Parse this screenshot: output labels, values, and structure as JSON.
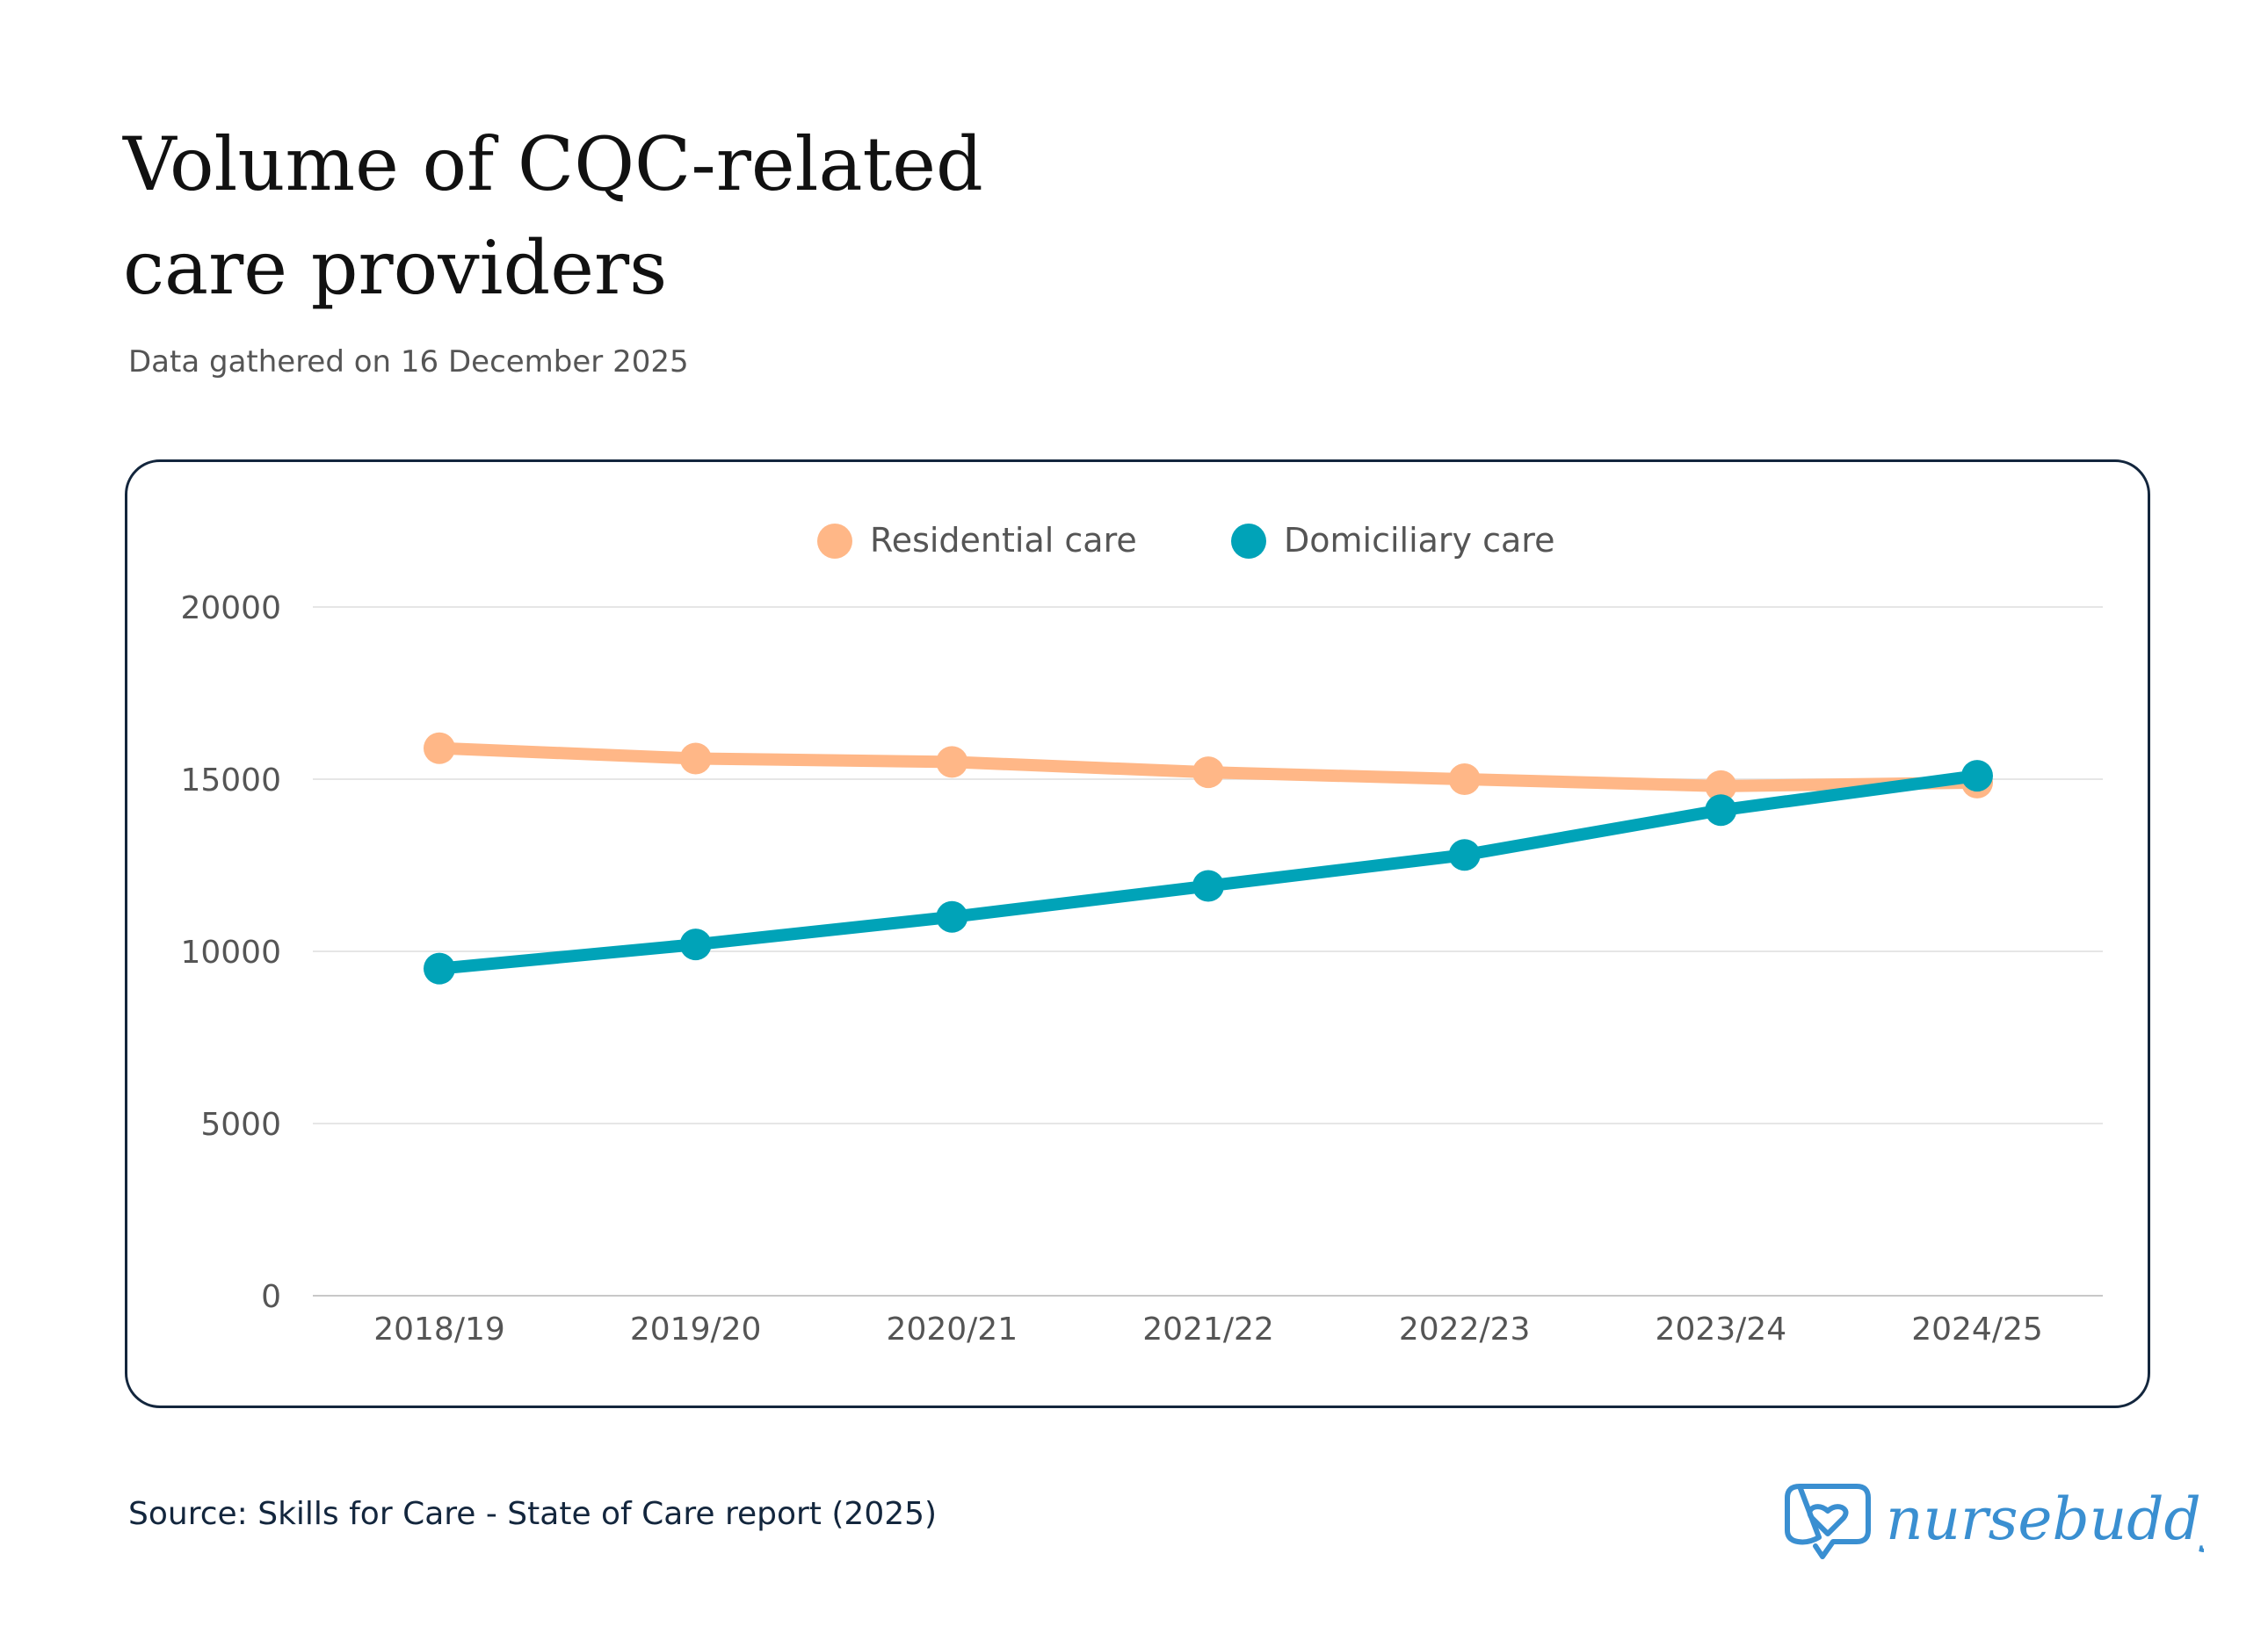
{
  "title": "Volume of CQC-related care providers",
  "subtitle": "Data gathered on 16 December 2025",
  "source": "Source: Skills for Care - State of Care report (2025)",
  "logo": {
    "text": "nursebuddy",
    "icon": "heart-speech-bubble-icon",
    "color": "#3a8fd1"
  },
  "chart_data": {
    "type": "line",
    "title": "Volume of CQC-related care providers",
    "xlabel": "",
    "ylabel": "",
    "categories": [
      "2018/19",
      "2019/20",
      "2020/21",
      "2021/22",
      "2022/23",
      "2023/24",
      "2024/25"
    ],
    "series": [
      {
        "name": "Residential care",
        "color": "#ffb787",
        "values": [
          15900,
          15600,
          15500,
          15200,
          15000,
          14800,
          14900
        ]
      },
      {
        "name": "Domiciliary care",
        "color": "#00a3b8",
        "values": [
          9500,
          10200,
          11000,
          11900,
          12800,
          14100,
          15100
        ]
      }
    ],
    "ylim": [
      0,
      20000
    ],
    "yticks": [
      0,
      5000,
      10000,
      15000,
      20000
    ],
    "grid": true,
    "legend": "top-center"
  }
}
